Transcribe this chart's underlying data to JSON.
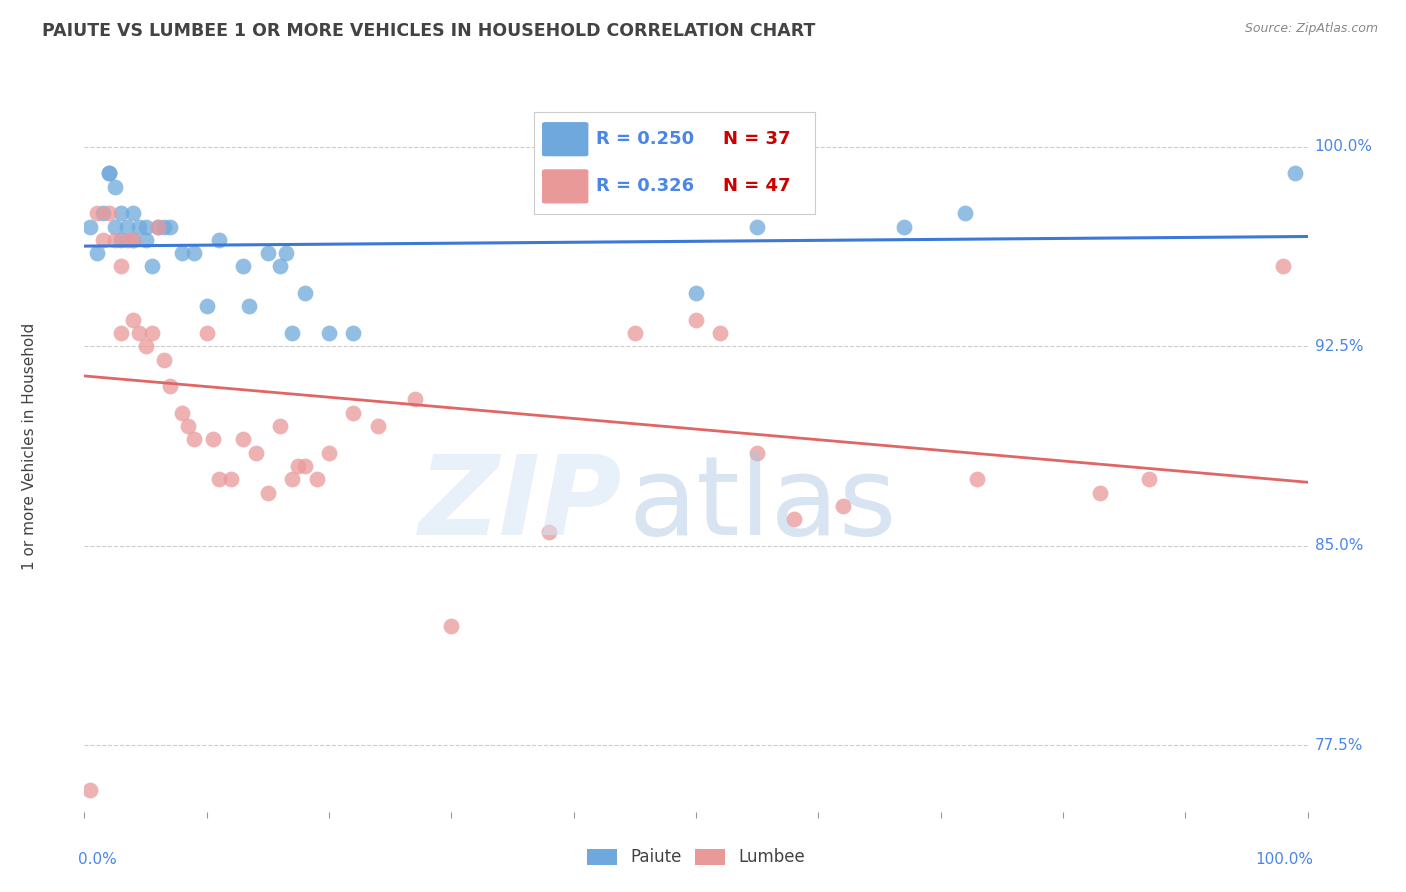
{
  "title": "PAIUTE VS LUMBEE 1 OR MORE VEHICLES IN HOUSEHOLD CORRELATION CHART",
  "source": "Source: ZipAtlas.com",
  "ylabel": "1 or more Vehicles in Household",
  "ytick_labels": [
    "77.5%",
    "85.0%",
    "92.5%",
    "100.0%"
  ],
  "ytick_values": [
    0.775,
    0.85,
    0.925,
    1.0
  ],
  "legend_blue_r": "R = 0.250",
  "legend_blue_n": "N = 37",
  "legend_pink_r": "R = 0.326",
  "legend_pink_n": "N = 47",
  "blue_color": "#6fa8dc",
  "pink_color": "#ea9999",
  "blue_line_color": "#3c78d8",
  "pink_line_color": "#e06666",
  "title_color": "#434343",
  "axis_label_color": "#4a86e8",
  "ymin": 0.75,
  "ymax": 1.025,
  "xmin": 0.0,
  "xmax": 1.0,
  "paiute_x": [
    0.005,
    0.01,
    0.015,
    0.02,
    0.02,
    0.025,
    0.025,
    0.03,
    0.03,
    0.035,
    0.04,
    0.04,
    0.045,
    0.05,
    0.05,
    0.055,
    0.06,
    0.065,
    0.07,
    0.08,
    0.09,
    0.1,
    0.11,
    0.13,
    0.135,
    0.15,
    0.16,
    0.165,
    0.17,
    0.18,
    0.2,
    0.22,
    0.5,
    0.55,
    0.67,
    0.72,
    0.99
  ],
  "paiute_y": [
    0.97,
    0.96,
    0.975,
    0.99,
    0.99,
    0.985,
    0.97,
    0.965,
    0.975,
    0.97,
    0.965,
    0.975,
    0.97,
    0.97,
    0.965,
    0.955,
    0.97,
    0.97,
    0.97,
    0.96,
    0.96,
    0.94,
    0.965,
    0.955,
    0.94,
    0.96,
    0.955,
    0.96,
    0.93,
    0.945,
    0.93,
    0.93,
    0.945,
    0.97,
    0.97,
    0.975,
    0.99
  ],
  "lumbee_x": [
    0.005,
    0.01,
    0.015,
    0.02,
    0.025,
    0.03,
    0.03,
    0.035,
    0.04,
    0.04,
    0.045,
    0.05,
    0.055,
    0.06,
    0.065,
    0.07,
    0.08,
    0.085,
    0.09,
    0.1,
    0.105,
    0.11,
    0.12,
    0.13,
    0.14,
    0.15,
    0.16,
    0.17,
    0.175,
    0.18,
    0.19,
    0.2,
    0.22,
    0.24,
    0.27,
    0.3,
    0.38,
    0.45,
    0.5,
    0.52,
    0.55,
    0.58,
    0.62,
    0.73,
    0.83,
    0.87,
    0.98
  ],
  "lumbee_y": [
    0.758,
    0.975,
    0.965,
    0.975,
    0.965,
    0.955,
    0.93,
    0.965,
    0.935,
    0.965,
    0.93,
    0.925,
    0.93,
    0.97,
    0.92,
    0.91,
    0.9,
    0.895,
    0.89,
    0.93,
    0.89,
    0.875,
    0.875,
    0.89,
    0.885,
    0.87,
    0.895,
    0.875,
    0.88,
    0.88,
    0.875,
    0.885,
    0.9,
    0.895,
    0.905,
    0.82,
    0.855,
    0.93,
    0.935,
    0.93,
    0.885,
    0.86,
    0.865,
    0.875,
    0.87,
    0.875,
    0.955
  ]
}
